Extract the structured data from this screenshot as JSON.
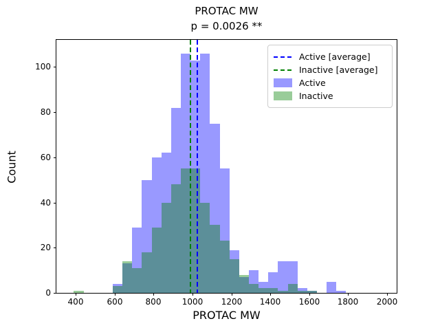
{
  "title": "PROTAC MW",
  "subtitle": "p = 0.0026 **",
  "xlabel": "PROTAC MW",
  "ylabel": "Count",
  "legend": [
    {
      "label": "Active [average]",
      "type": "line",
      "color": "#0000ff"
    },
    {
      "label": "Inactive [average]",
      "type": "line",
      "color": "#008000"
    },
    {
      "label": "Active",
      "type": "patch",
      "color": "rgba(0,0,255,0.4)"
    },
    {
      "label": "Inactive",
      "type": "patch",
      "color": "rgba(0,128,0,0.4)"
    }
  ],
  "chart_data": {
    "type": "histogram-overlay",
    "title": "PROTAC MW",
    "subtitle": "p = 0.0026 **",
    "xlabel": "PROTAC MW",
    "ylabel": "Count",
    "grid": false,
    "legend_position": "upper right",
    "bin_width": 50,
    "bin_starts": [
      390,
      440,
      490,
      540,
      590,
      640,
      690,
      740,
      790,
      840,
      890,
      940,
      990,
      1040,
      1090,
      1140,
      1190,
      1240,
      1290,
      1340,
      1390,
      1440,
      1490,
      1540,
      1590,
      1640,
      1690,
      1740,
      1790
    ],
    "series": [
      {
        "name": "Active",
        "color": "#0000ff",
        "fill": "rgba(0,0,255,0.4)",
        "alpha": 0.4,
        "average_mw": 1025,
        "counts": [
          0,
          0,
          0,
          0,
          4,
          13,
          29,
          50,
          60,
          62,
          82,
          106,
          103,
          106,
          75,
          55,
          19,
          7,
          10,
          5,
          9,
          14,
          14,
          2,
          1,
          0,
          5,
          1,
          0
        ]
      },
      {
        "name": "Inactive",
        "color": "#008000",
        "fill": "rgba(0,128,0,0.4)",
        "alpha": 0.4,
        "average_mw": 988,
        "counts": [
          1,
          0,
          0,
          0,
          3,
          14,
          11,
          18,
          29,
          40,
          48,
          55,
          55,
          40,
          30,
          23,
          15,
          8,
          4,
          2,
          2,
          1,
          4,
          1,
          1,
          0,
          0,
          0,
          0
        ]
      }
    ],
    "x_ticks": [
      400,
      600,
      800,
      1000,
      1200,
      1400,
      1600,
      1800,
      2000
    ],
    "y_ticks": [
      0,
      20,
      40,
      60,
      80,
      100
    ],
    "xlim": [
      300,
      2050
    ],
    "ylim": [
      0,
      112
    ]
  }
}
